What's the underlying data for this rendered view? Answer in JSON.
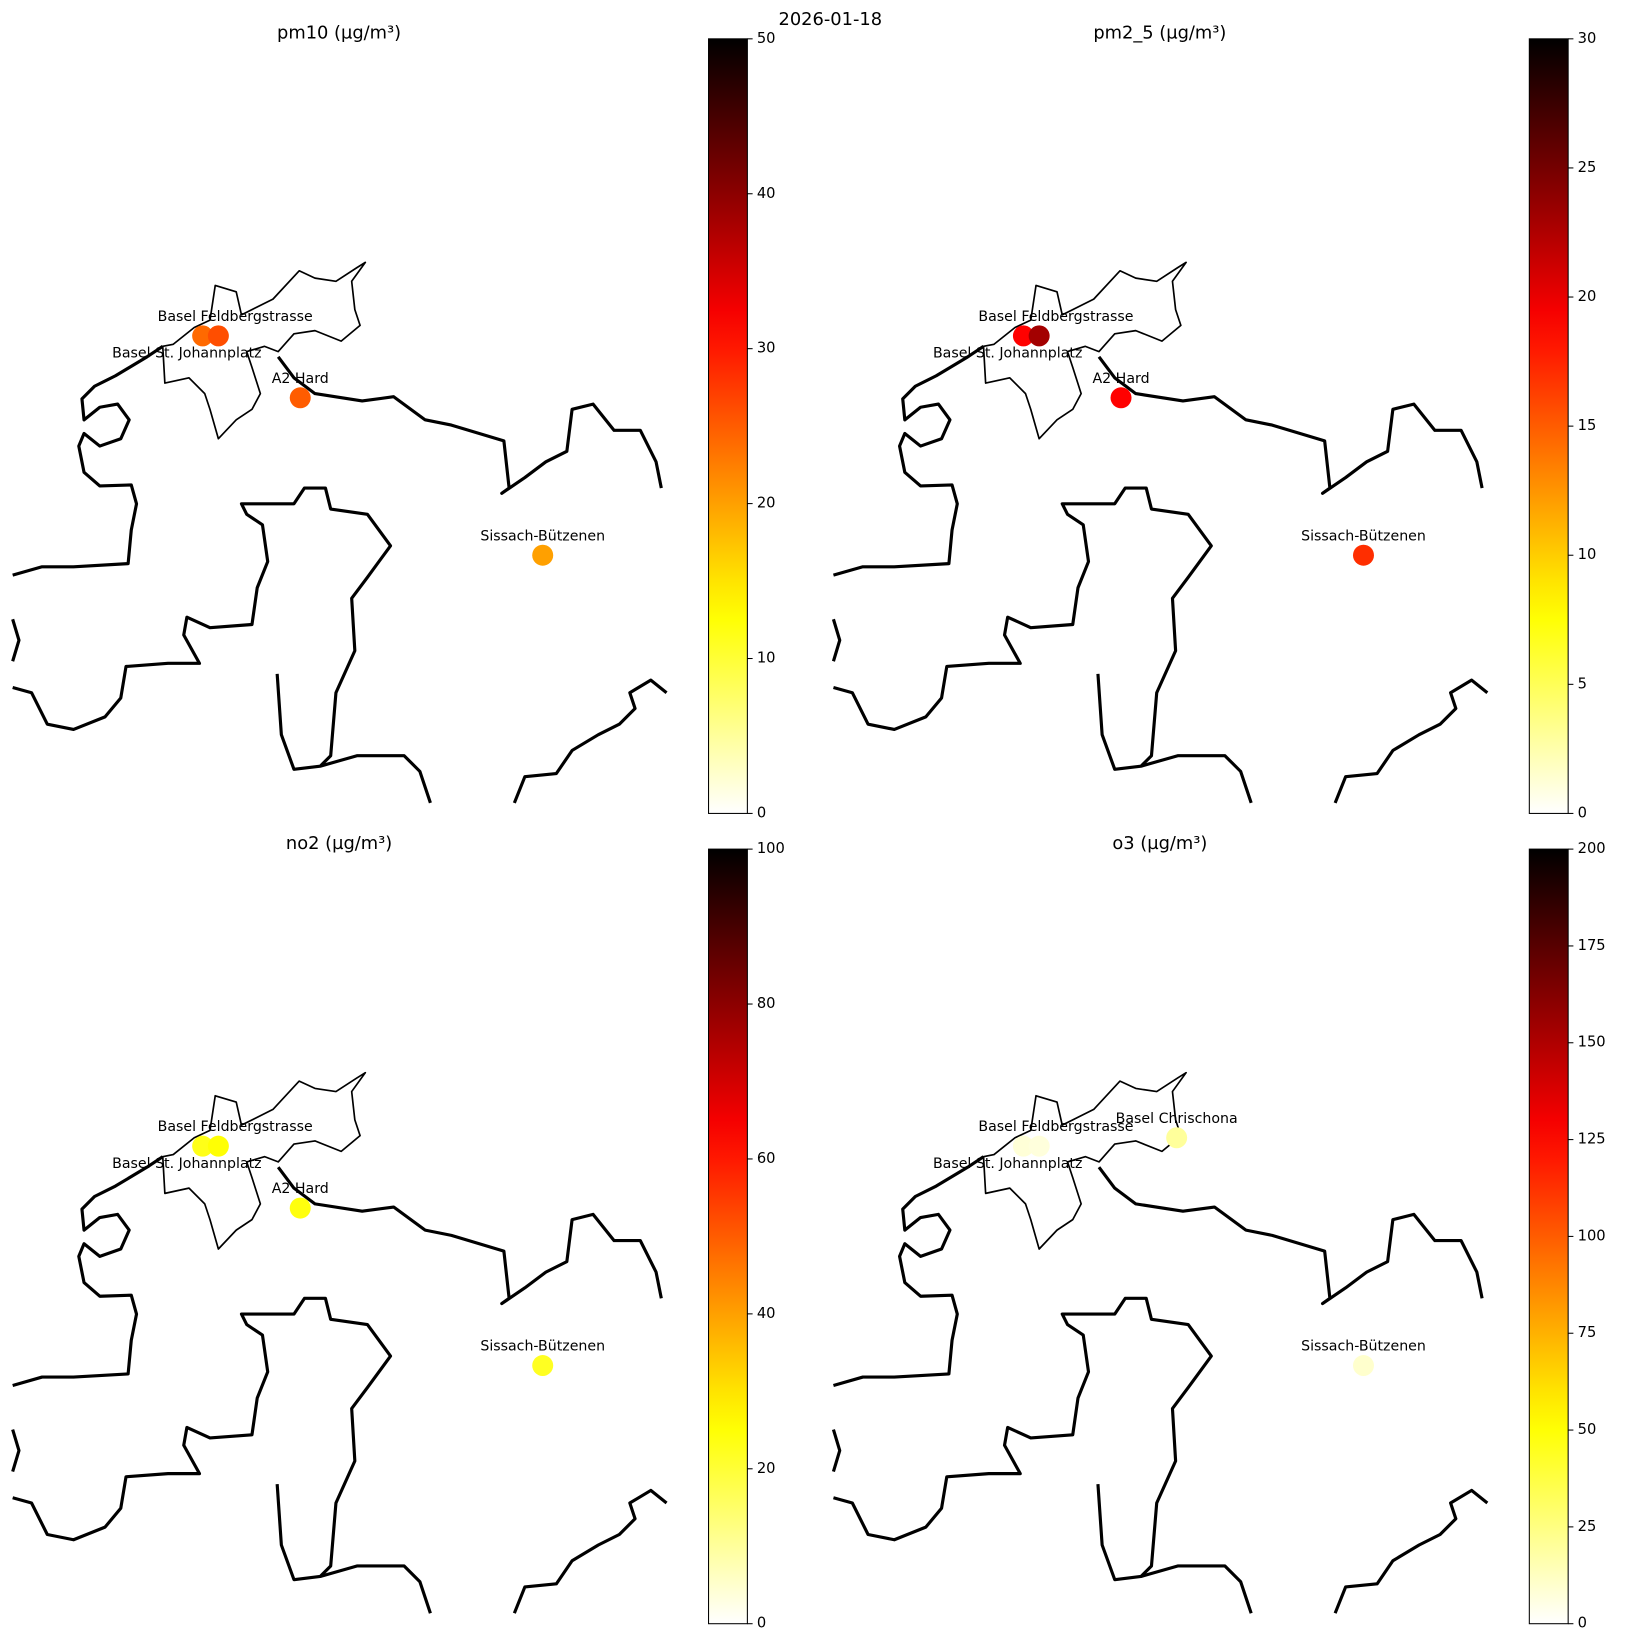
{
  "title": "2026-01-18",
  "chart_data": [
    {
      "type": "scatter",
      "title": "pm10 (µg/m³)",
      "colormap": "hot_r",
      "categories": [
        "Basel St. Johannplatz",
        "Basel Feldbergstrasse",
        "A2 Hard",
        "Sissach-Bützenen"
      ],
      "values": [
        24,
        26,
        25,
        20
      ],
      "clim": [
        0,
        50
      ],
      "cticks": [
        0,
        10,
        20,
        30,
        40,
        50
      ]
    },
    {
      "type": "scatter",
      "title": "pm2_5 (µg/m³)",
      "colormap": "hot_r",
      "categories": [
        "Basel St. Johannplatz",
        "Basel Feldbergstrasse",
        "A2 Hard",
        "Sissach-Bützenen"
      ],
      "values": [
        19,
        23,
        19,
        17
      ],
      "clim": [
        0,
        30
      ],
      "cticks": [
        0,
        5,
        10,
        15,
        20,
        25,
        30
      ]
    },
    {
      "type": "scatter",
      "title": "no2 (µg/m³)",
      "colormap": "hot_r",
      "categories": [
        "Basel St. Johannplatz",
        "Basel Feldbergstrasse",
        "A2 Hard",
        "Sissach-Bützenen"
      ],
      "values": [
        23,
        25,
        24,
        22
      ],
      "clim": [
        0,
        100
      ],
      "cticks": [
        0,
        20,
        40,
        60,
        80,
        100
      ]
    },
    {
      "type": "scatter",
      "title": "o3 (µg/m³)",
      "colormap": "hot_r",
      "categories": [
        "Basel St. Johannplatz",
        "Basel Feldbergstrasse",
        "Basel Chrischona",
        "Sissach-Bützenen"
      ],
      "values": [
        8,
        7,
        20,
        10
      ],
      "clim": [
        0,
        200
      ],
      "cticks": [
        0,
        25,
        50,
        75,
        100,
        125,
        150,
        175,
        200
      ]
    }
  ]
}
